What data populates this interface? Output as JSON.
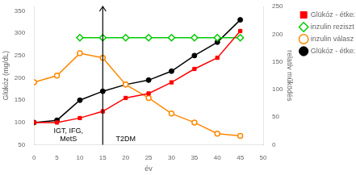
{
  "chart_data": {
    "type": "line",
    "xlabel": "év",
    "ylabel": "Glükóz (mg/dL)",
    "y2label": "relatív működés",
    "x": [
      0,
      5,
      10,
      15,
      20,
      25,
      30,
      35,
      40,
      45
    ],
    "series": [
      {
        "name": "Glükóz - étkezés előtt",
        "color": "#ff0000",
        "marker": "square",
        "values": [
          100,
          100,
          110,
          125,
          155,
          165,
          190,
          220,
          245,
          305
        ]
      },
      {
        "name": "inzulin rezisztencia",
        "color": "#00cc00",
        "marker": "open_diamond",
        "values": [
          null,
          null,
          290,
          290,
          290,
          290,
          290,
          290,
          290,
          290
        ]
      },
      {
        "name": "inzulin válasz",
        "color": "#ff8800",
        "marker": "open_circle",
        "values": [
          190,
          205,
          255,
          245,
          185,
          155,
          120,
          100,
          75,
          70
        ]
      },
      {
        "name": "Glükóz - étkezés után",
        "color": "#000000",
        "marker": "circle",
        "values": [
          100,
          105,
          150,
          170,
          185,
          195,
          215,
          250,
          280,
          330
        ]
      }
    ],
    "xlim": [
      0,
      50
    ],
    "xticks": [
      0,
      5,
      10,
      15,
      20,
      25,
      30,
      35,
      40,
      45,
      50
    ],
    "ylim": [
      50,
      360
    ],
    "yticks": [
      50,
      100,
      150,
      200,
      250,
      300,
      350
    ],
    "y2lim": [
      0,
      250
    ],
    "y2ticks": [
      0,
      50,
      100,
      150,
      200,
      250
    ],
    "vlines": [
      {
        "x": 15,
        "color": "#000000"
      }
    ],
    "annotations": [
      {
        "text": "IGT, IFG,\nMetS",
        "x": 7.5,
        "y": 55
      },
      {
        "text": "T2DM",
        "x": 20,
        "y": 55
      }
    ],
    "grid": false,
    "legend": "right"
  }
}
